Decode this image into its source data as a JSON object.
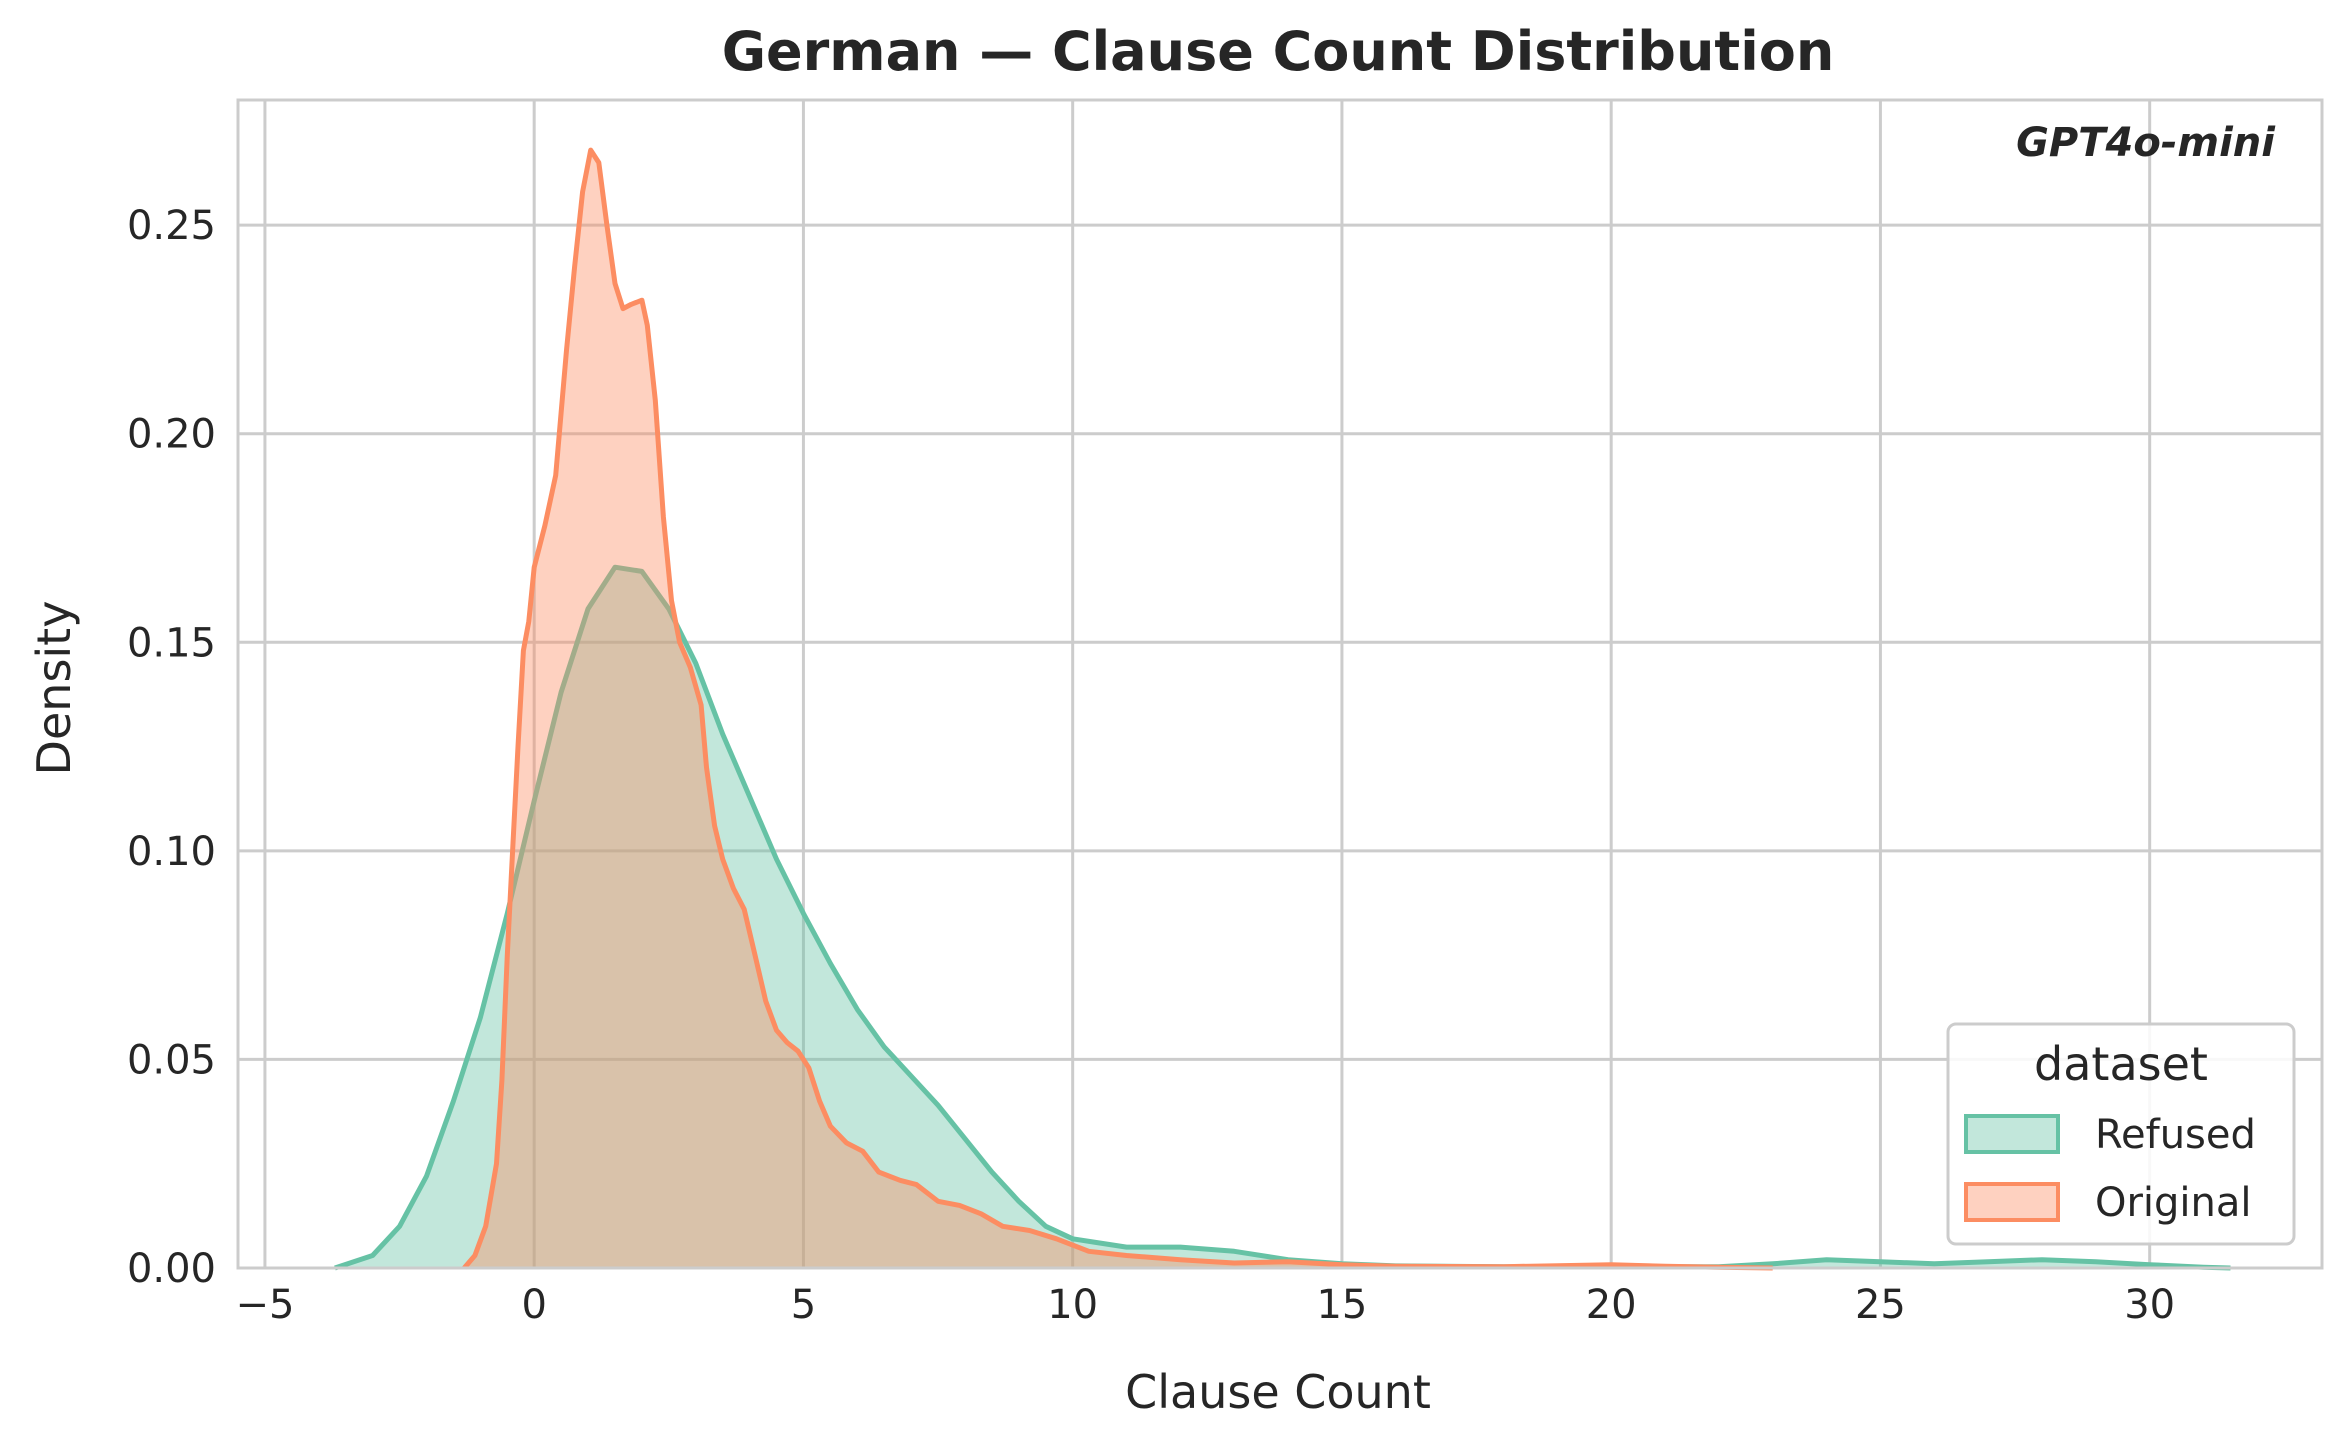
{
  "chart_data": {
    "type": "area",
    "title": "German — Clause Count Distribution",
    "xlabel": "Clause Count",
    "ylabel": "Density",
    "xlim": [
      -5.5,
      33.2
    ],
    "ylim": [
      0,
      0.28
    ],
    "xticks": [
      -5,
      0,
      5,
      10,
      15,
      20,
      25,
      30
    ],
    "xtick_labels": [
      "−5",
      "0",
      "5",
      "10",
      "15",
      "20",
      "25",
      "30"
    ],
    "yticks": [
      0,
      0.05,
      0.1,
      0.15,
      0.2,
      0.25
    ],
    "ytick_labels": [
      "0.00",
      "0.05",
      "0.10",
      "0.15",
      "0.20",
      "0.25"
    ],
    "grid": true,
    "annotation": "GPT4o-mini",
    "legend": {
      "title": "dataset",
      "placement": "lower-right"
    },
    "series": [
      {
        "name": "Refused",
        "color": "#66c2a5",
        "points": [
          [
            -3.7,
            0.0
          ],
          [
            -3.0,
            0.003
          ],
          [
            -2.5,
            0.01
          ],
          [
            -2.0,
            0.022
          ],
          [
            -1.5,
            0.04
          ],
          [
            -1.0,
            0.06
          ],
          [
            -0.5,
            0.085
          ],
          [
            0.0,
            0.112
          ],
          [
            0.5,
            0.138
          ],
          [
            1.0,
            0.158
          ],
          [
            1.5,
            0.168
          ],
          [
            2.0,
            0.167
          ],
          [
            2.5,
            0.158
          ],
          [
            3.0,
            0.145
          ],
          [
            3.5,
            0.128
          ],
          [
            4.0,
            0.113
          ],
          [
            4.5,
            0.098
          ],
          [
            5.0,
            0.085
          ],
          [
            5.5,
            0.073
          ],
          [
            6.0,
            0.062
          ],
          [
            6.5,
            0.053
          ],
          [
            7.0,
            0.046
          ],
          [
            7.5,
            0.039
          ],
          [
            8.0,
            0.031
          ],
          [
            8.5,
            0.023
          ],
          [
            9.0,
            0.016
          ],
          [
            9.5,
            0.01
          ],
          [
            10.0,
            0.007
          ],
          [
            10.5,
            0.006
          ],
          [
            11.0,
            0.005
          ],
          [
            12.0,
            0.005
          ],
          [
            13.0,
            0.004
          ],
          [
            14.0,
            0.002
          ],
          [
            15.0,
            0.001
          ],
          [
            16.0,
            0.0005
          ],
          [
            18.0,
            0.0003
          ],
          [
            20.0,
            0.0003
          ],
          [
            22.0,
            0.0003
          ],
          [
            23.0,
            0.001
          ],
          [
            24.0,
            0.002
          ],
          [
            25.0,
            0.0015
          ],
          [
            26.0,
            0.001
          ],
          [
            27.0,
            0.0015
          ],
          [
            28.0,
            0.002
          ],
          [
            29.0,
            0.0015
          ],
          [
            30.0,
            0.0008
          ],
          [
            31.0,
            0.0002
          ],
          [
            31.5,
            0.0
          ]
        ]
      },
      {
        "name": "Original",
        "color": "#fc8d62",
        "points": [
          [
            -1.3,
            0.0
          ],
          [
            -1.1,
            0.003
          ],
          [
            -0.9,
            0.01
          ],
          [
            -0.7,
            0.025
          ],
          [
            -0.6,
            0.045
          ],
          [
            -0.5,
            0.075
          ],
          [
            -0.4,
            0.1
          ],
          [
            -0.3,
            0.125
          ],
          [
            -0.2,
            0.148
          ],
          [
            -0.1,
            0.155
          ],
          [
            0.0,
            0.168
          ],
          [
            0.2,
            0.178
          ],
          [
            0.4,
            0.19
          ],
          [
            0.5,
            0.205
          ],
          [
            0.6,
            0.22
          ],
          [
            0.75,
            0.24
          ],
          [
            0.9,
            0.258
          ],
          [
            1.05,
            0.268
          ],
          [
            1.2,
            0.265
          ],
          [
            1.35,
            0.25
          ],
          [
            1.5,
            0.236
          ],
          [
            1.65,
            0.23
          ],
          [
            1.8,
            0.231
          ],
          [
            2.0,
            0.232
          ],
          [
            2.1,
            0.226
          ],
          [
            2.25,
            0.208
          ],
          [
            2.4,
            0.18
          ],
          [
            2.55,
            0.16
          ],
          [
            2.7,
            0.15
          ],
          [
            2.9,
            0.144
          ],
          [
            3.1,
            0.135
          ],
          [
            3.2,
            0.12
          ],
          [
            3.35,
            0.106
          ],
          [
            3.5,
            0.098
          ],
          [
            3.7,
            0.091
          ],
          [
            3.9,
            0.086
          ],
          [
            4.1,
            0.075
          ],
          [
            4.3,
            0.064
          ],
          [
            4.5,
            0.057
          ],
          [
            4.7,
            0.054
          ],
          [
            4.9,
            0.052
          ],
          [
            5.1,
            0.048
          ],
          [
            5.3,
            0.04
          ],
          [
            5.5,
            0.034
          ],
          [
            5.8,
            0.03
          ],
          [
            6.1,
            0.028
          ],
          [
            6.4,
            0.023
          ],
          [
            6.8,
            0.021
          ],
          [
            7.1,
            0.02
          ],
          [
            7.5,
            0.016
          ],
          [
            7.9,
            0.015
          ],
          [
            8.3,
            0.013
          ],
          [
            8.7,
            0.01
          ],
          [
            9.2,
            0.009
          ],
          [
            9.7,
            0.007
          ],
          [
            10.3,
            0.004
          ],
          [
            11.0,
            0.003
          ],
          [
            12.0,
            0.002
          ],
          [
            13.0,
            0.0012
          ],
          [
            14.0,
            0.0015
          ],
          [
            15.0,
            0.0008
          ],
          [
            16.0,
            0.0004
          ],
          [
            18.0,
            0.0003
          ],
          [
            20.0,
            0.0008
          ],
          [
            21.0,
            0.0004
          ],
          [
            22.0,
            0.0002
          ],
          [
            23.0,
            0.0
          ]
        ]
      }
    ]
  }
}
